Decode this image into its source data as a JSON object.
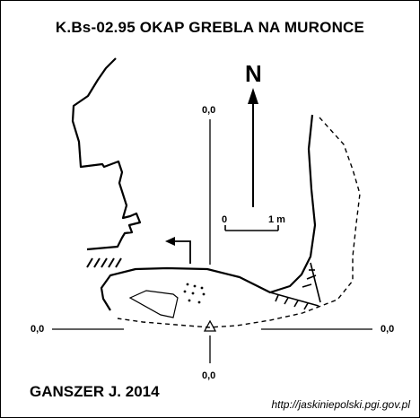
{
  "title": "K.Bs-02.95 OKAP GREBLA NA MURONCE",
  "author": "GANSZER J. 2014",
  "source": "http://jaskiniepolski.pgi.gov.pl",
  "north": "N",
  "scale": {
    "start": "0",
    "end": "1 m"
  },
  "coords": {
    "top": "0,0",
    "bottom": "0,0",
    "left": "0,0",
    "right": "0,0"
  },
  "colors": {
    "line": "#000000",
    "background": "#ffffff"
  },
  "icons": [
    "north-arrow-icon",
    "entrance-arrow-icon",
    "datum-triangle-icon",
    "rubble-dots-icon",
    "boulder-icon"
  ]
}
